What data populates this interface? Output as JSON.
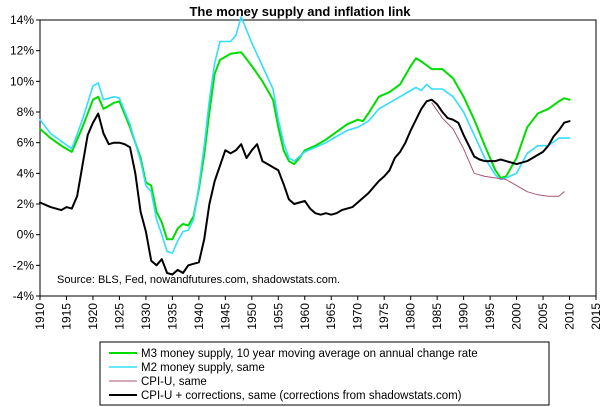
{
  "chart_data": {
    "type": "line",
    "title": "The money supply and inflation link",
    "xlabel": "",
    "ylabel": "",
    "xlim": [
      1910,
      2015
    ],
    "ylim": [
      -4,
      14
    ],
    "x_ticks": [
      1910,
      1915,
      1920,
      1925,
      1930,
      1935,
      1940,
      1945,
      1950,
      1955,
      1960,
      1965,
      1970,
      1975,
      1980,
      1985,
      1990,
      1995,
      2000,
      2005,
      2010,
      2015
    ],
    "y_ticks": [
      -4,
      -2,
      0,
      2,
      4,
      6,
      8,
      10,
      12,
      14
    ],
    "y_tick_labels": [
      "-4%",
      "-2%",
      "0%",
      "2%",
      "4%",
      "6%",
      "8%",
      "10%",
      "12%",
      "14%"
    ],
    "grid": false,
    "legend_position": "bottom",
    "annotation": "Source: BLS, Fed, nowandfutures.com, shadowstats.com.",
    "series": [
      {
        "name": "M3 money supply, 10 year moving average on annual change rate",
        "color": "#00dd00",
        "points": [
          [
            1910,
            6.9
          ],
          [
            1912,
            6.3
          ],
          [
            1914,
            5.8
          ],
          [
            1916,
            5.4
          ],
          [
            1918,
            7.0
          ],
          [
            1920,
            8.8
          ],
          [
            1921,
            9.0
          ],
          [
            1922,
            8.2
          ],
          [
            1924,
            8.6
          ],
          [
            1925,
            8.7
          ],
          [
            1927,
            7.0
          ],
          [
            1929,
            5.0
          ],
          [
            1930,
            3.4
          ],
          [
            1931,
            3.2
          ],
          [
            1932,
            1.5
          ],
          [
            1933,
            0.8
          ],
          [
            1934,
            -0.3
          ],
          [
            1935,
            -0.3
          ],
          [
            1936,
            0.4
          ],
          [
            1937,
            0.7
          ],
          [
            1938,
            0.6
          ],
          [
            1939,
            1.2
          ],
          [
            1940,
            3.0
          ],
          [
            1941,
            5.2
          ],
          [
            1942,
            8.0
          ],
          [
            1943,
            10.5
          ],
          [
            1944,
            11.4
          ],
          [
            1946,
            11.8
          ],
          [
            1948,
            11.9
          ],
          [
            1950,
            11.0
          ],
          [
            1952,
            10.0
          ],
          [
            1954,
            8.8
          ],
          [
            1955,
            7.0
          ],
          [
            1956,
            5.5
          ],
          [
            1957,
            4.8
          ],
          [
            1958,
            4.6
          ],
          [
            1959,
            5.0
          ],
          [
            1960,
            5.5
          ],
          [
            1962,
            5.8
          ],
          [
            1964,
            6.2
          ],
          [
            1966,
            6.7
          ],
          [
            1968,
            7.2
          ],
          [
            1970,
            7.5
          ],
          [
            1971,
            7.4
          ],
          [
            1972,
            7.9
          ],
          [
            1974,
            9.0
          ],
          [
            1976,
            9.3
          ],
          [
            1978,
            9.8
          ],
          [
            1980,
            11.0
          ],
          [
            1981,
            11.5
          ],
          [
            1982,
            11.3
          ],
          [
            1984,
            10.8
          ],
          [
            1986,
            10.8
          ],
          [
            1987,
            10.5
          ],
          [
            1988,
            10.2
          ],
          [
            1990,
            9.0
          ],
          [
            1992,
            7.5
          ],
          [
            1994,
            5.8
          ],
          [
            1996,
            4.2
          ],
          [
            1997,
            3.7
          ],
          [
            1998,
            3.8
          ],
          [
            2000,
            5.0
          ],
          [
            2002,
            7.0
          ],
          [
            2004,
            7.9
          ],
          [
            2006,
            8.2
          ],
          [
            2008,
            8.7
          ],
          [
            2009,
            8.9
          ],
          [
            2010,
            8.8
          ]
        ]
      },
      {
        "name": "M2 money supply, same",
        "color": "#33ddff",
        "points": [
          [
            1910,
            7.5
          ],
          [
            1912,
            6.6
          ],
          [
            1914,
            6.1
          ],
          [
            1916,
            5.6
          ],
          [
            1918,
            7.5
          ],
          [
            1920,
            9.7
          ],
          [
            1921,
            9.9
          ],
          [
            1922,
            8.8
          ],
          [
            1924,
            9.0
          ],
          [
            1925,
            8.9
          ],
          [
            1927,
            7.2
          ],
          [
            1929,
            4.8
          ],
          [
            1930,
            3.2
          ],
          [
            1931,
            2.8
          ],
          [
            1932,
            1.0
          ],
          [
            1933,
            0.0
          ],
          [
            1934,
            -1.1
          ],
          [
            1935,
            -1.2
          ],
          [
            1936,
            -0.4
          ],
          [
            1937,
            0.2
          ],
          [
            1938,
            0.3
          ],
          [
            1939,
            1.0
          ],
          [
            1940,
            3.2
          ],
          [
            1941,
            5.8
          ],
          [
            1942,
            8.8
          ],
          [
            1943,
            11.2
          ],
          [
            1944,
            12.6
          ],
          [
            1946,
            12.6
          ],
          [
            1947,
            13.0
          ],
          [
            1948,
            14.2
          ],
          [
            1950,
            12.5
          ],
          [
            1952,
            11.0
          ],
          [
            1954,
            9.5
          ],
          [
            1955,
            7.5
          ],
          [
            1956,
            6.0
          ],
          [
            1957,
            5.0
          ],
          [
            1958,
            4.8
          ],
          [
            1959,
            5.1
          ],
          [
            1960,
            5.4
          ],
          [
            1962,
            5.7
          ],
          [
            1964,
            6.0
          ],
          [
            1966,
            6.4
          ],
          [
            1968,
            6.8
          ],
          [
            1970,
            7.0
          ],
          [
            1972,
            7.4
          ],
          [
            1974,
            8.2
          ],
          [
            1976,
            8.6
          ],
          [
            1978,
            9.0
          ],
          [
            1980,
            9.4
          ],
          [
            1981,
            9.6
          ],
          [
            1982,
            9.4
          ],
          [
            1983,
            9.8
          ],
          [
            1984,
            9.5
          ],
          [
            1986,
            9.5
          ],
          [
            1988,
            9.0
          ],
          [
            1990,
            8.0
          ],
          [
            1992,
            6.5
          ],
          [
            1994,
            5.0
          ],
          [
            1996,
            3.9
          ],
          [
            1997,
            3.6
          ],
          [
            1998,
            3.7
          ],
          [
            2000,
            4.0
          ],
          [
            2002,
            5.3
          ],
          [
            2004,
            5.8
          ],
          [
            2006,
            5.8
          ],
          [
            2008,
            6.3
          ],
          [
            2010,
            6.3
          ]
        ]
      },
      {
        "name": "CPI-U, same",
        "color": "#aa5577",
        "points": [
          [
            1984,
            8.6
          ],
          [
            1986,
            7.6
          ],
          [
            1988,
            6.9
          ],
          [
            1990,
            5.6
          ],
          [
            1992,
            4.0
          ],
          [
            1994,
            3.8
          ],
          [
            1996,
            3.7
          ],
          [
            1998,
            3.6
          ],
          [
            2000,
            3.2
          ],
          [
            2002,
            2.8
          ],
          [
            2004,
            2.6
          ],
          [
            2006,
            2.5
          ],
          [
            2008,
            2.5
          ],
          [
            2009,
            2.8
          ]
        ]
      },
      {
        "name": "CPI-U + corrections, same (corrections from shadowstats.com)",
        "color": "#000000",
        "points": [
          [
            1910,
            2.1
          ],
          [
            1912,
            1.8
          ],
          [
            1914,
            1.6
          ],
          [
            1915,
            1.8
          ],
          [
            1916,
            1.7
          ],
          [
            1917,
            2.5
          ],
          [
            1918,
            4.5
          ],
          [
            1919,
            6.5
          ],
          [
            1920,
            7.3
          ],
          [
            1921,
            7.9
          ],
          [
            1922,
            6.6
          ],
          [
            1923,
            5.9
          ],
          [
            1924,
            6.0
          ],
          [
            1925,
            6.0
          ],
          [
            1926,
            5.9
          ],
          [
            1927,
            5.7
          ],
          [
            1928,
            4.0
          ],
          [
            1929,
            1.5
          ],
          [
            1930,
            0.2
          ],
          [
            1931,
            -1.7
          ],
          [
            1932,
            -2.0
          ],
          [
            1933,
            -1.6
          ],
          [
            1934,
            -2.5
          ],
          [
            1935,
            -2.6
          ],
          [
            1936,
            -2.3
          ],
          [
            1937,
            -2.5
          ],
          [
            1938,
            -2.0
          ],
          [
            1939,
            -1.9
          ],
          [
            1940,
            -1.8
          ],
          [
            1941,
            -0.3
          ],
          [
            1942,
            2.0
          ],
          [
            1943,
            3.5
          ],
          [
            1944,
            4.5
          ],
          [
            1945,
            5.5
          ],
          [
            1946,
            5.3
          ],
          [
            1947,
            5.5
          ],
          [
            1948,
            5.9
          ],
          [
            1949,
            5.0
          ],
          [
            1950,
            5.5
          ],
          [
            1951,
            5.9
          ],
          [
            1952,
            4.8
          ],
          [
            1953,
            4.6
          ],
          [
            1954,
            4.4
          ],
          [
            1955,
            4.2
          ],
          [
            1956,
            3.3
          ],
          [
            1957,
            2.3
          ],
          [
            1958,
            2.0
          ],
          [
            1959,
            2.1
          ],
          [
            1960,
            2.2
          ],
          [
            1961,
            1.7
          ],
          [
            1962,
            1.4
          ],
          [
            1963,
            1.3
          ],
          [
            1964,
            1.4
          ],
          [
            1965,
            1.3
          ],
          [
            1966,
            1.4
          ],
          [
            1967,
            1.6
          ],
          [
            1968,
            1.7
          ],
          [
            1969,
            1.8
          ],
          [
            1970,
            2.1
          ],
          [
            1971,
            2.4
          ],
          [
            1972,
            2.7
          ],
          [
            1973,
            3.1
          ],
          [
            1974,
            3.5
          ],
          [
            1975,
            3.8
          ],
          [
            1976,
            4.2
          ],
          [
            1977,
            5.0
          ],
          [
            1978,
            5.4
          ],
          [
            1979,
            6.0
          ],
          [
            1980,
            6.8
          ],
          [
            1981,
            7.5
          ],
          [
            1982,
            8.2
          ],
          [
            1983,
            8.7
          ],
          [
            1984,
            8.8
          ],
          [
            1985,
            8.5
          ],
          [
            1986,
            8.0
          ],
          [
            1987,
            7.6
          ],
          [
            1988,
            7.5
          ],
          [
            1989,
            7.3
          ],
          [
            1990,
            6.5
          ],
          [
            1991,
            5.8
          ],
          [
            1992,
            5.1
          ],
          [
            1993,
            4.9
          ],
          [
            1994,
            4.8
          ],
          [
            1995,
            4.8
          ],
          [
            1996,
            4.8
          ],
          [
            1997,
            4.9
          ],
          [
            1998,
            4.8
          ],
          [
            1999,
            4.7
          ],
          [
            2000,
            4.6
          ],
          [
            2001,
            4.7
          ],
          [
            2002,
            4.8
          ],
          [
            2003,
            5.0
          ],
          [
            2004,
            5.2
          ],
          [
            2005,
            5.4
          ],
          [
            2006,
            5.8
          ],
          [
            2007,
            6.4
          ],
          [
            2008,
            6.8
          ],
          [
            2009,
            7.3
          ],
          [
            2010,
            7.4
          ]
        ]
      }
    ]
  }
}
